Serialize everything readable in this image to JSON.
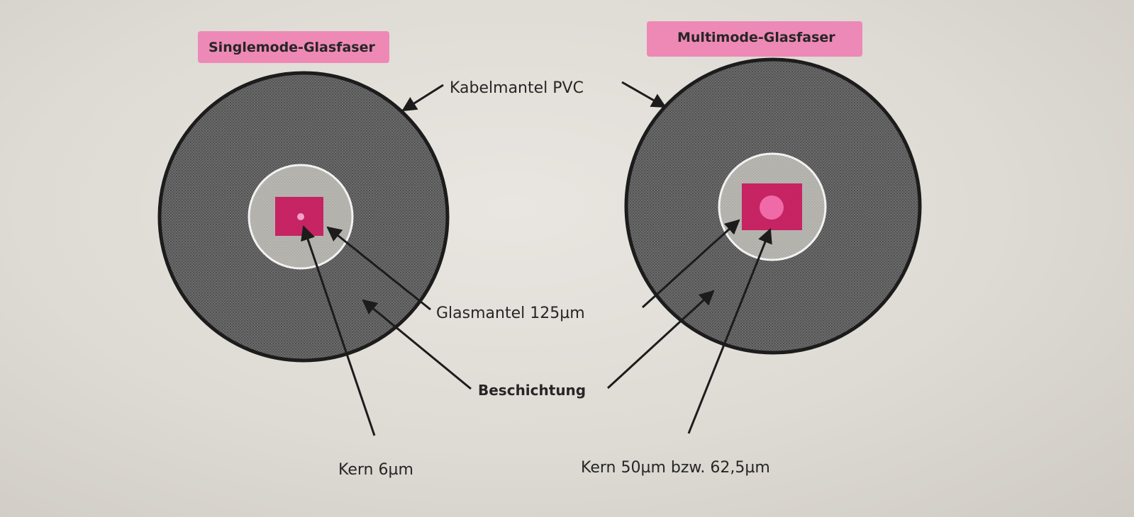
{
  "fibers": {
    "singlemode": {
      "title": "Singlemode-Glasfaser"
    },
    "multimode": {
      "title": "Multimode-Glasfaser"
    }
  },
  "labels": {
    "cable_jacket": "Kabelmantel PVC",
    "cladding": "Glasmantel 125µm",
    "coating": "Beschichtung",
    "core_singlemode": "Kern 6µm",
    "core_multimode": "Kern 50µm bzw. 62,5µm"
  },
  "colors": {
    "highlight": "#f07ab0",
    "core_mark": "#c8145a",
    "core": "#f06aa8",
    "coating": "#5e5e5e",
    "cladding": "#b7b5b0",
    "outline": "#1c1c1c"
  }
}
